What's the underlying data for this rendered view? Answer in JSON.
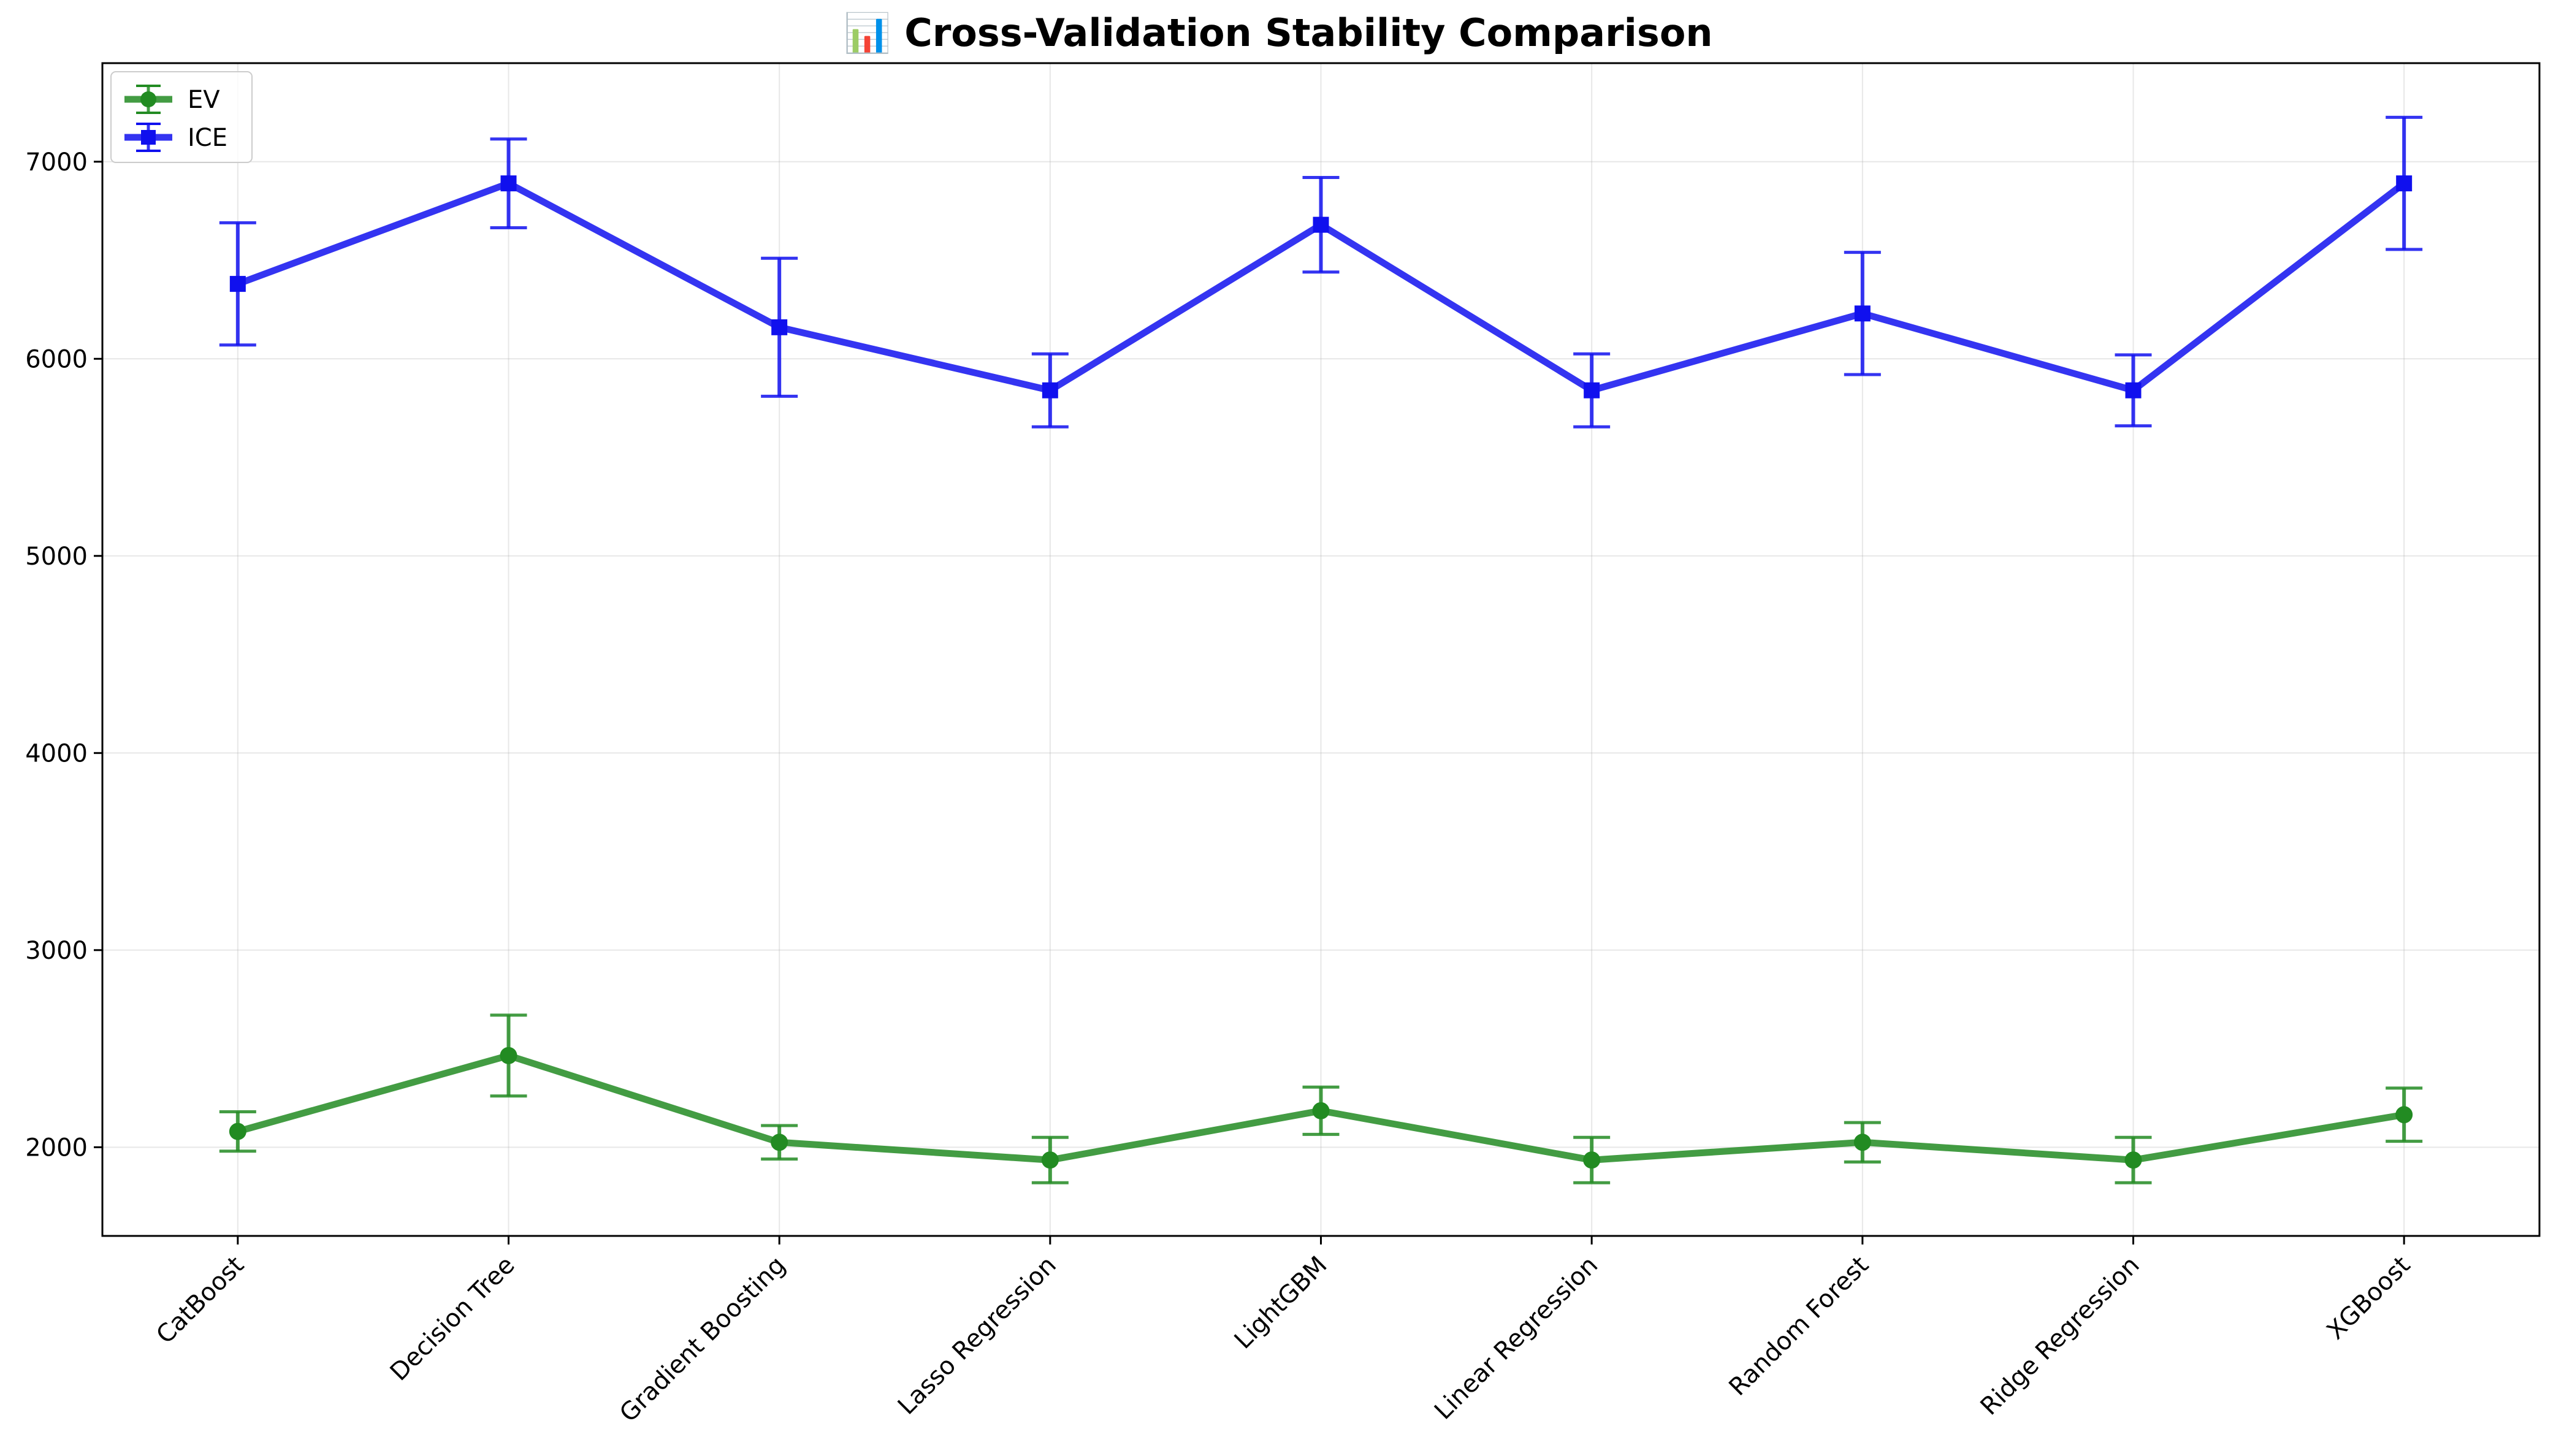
{
  "chart_data": {
    "type": "line",
    "title": "📊 Cross-Validation Stability Comparison",
    "xlabel": "",
    "ylabel": "",
    "categories": [
      "CatBoost",
      "Decision Tree",
      "Gradient Boosting",
      "Lasso Regression",
      "LightGBM",
      "Linear Regression",
      "Random Forest",
      "Ridge Regression",
      "XGBoost"
    ],
    "ylim": [
      1550,
      7500
    ],
    "yticks": [
      2000,
      3000,
      4000,
      5000,
      6000,
      7000
    ],
    "grid": true,
    "legend_position": "top-left",
    "series": [
      {
        "name": "EV",
        "color": "#228B22",
        "marker": "circle",
        "values": [
          2080,
          2465,
          2025,
          1935,
          2185,
          1935,
          2025,
          1935,
          2165
        ],
        "errors": [
          100,
          205,
          85,
          115,
          120,
          115,
          100,
          115,
          135
        ]
      },
      {
        "name": "ICE",
        "color": "#1010EE",
        "marker": "square",
        "values": [
          6380,
          6890,
          6160,
          5840,
          6680,
          5840,
          6230,
          5840,
          6890
        ],
        "errors": [
          310,
          225,
          350,
          185,
          240,
          185,
          310,
          180,
          335
        ]
      }
    ]
  }
}
